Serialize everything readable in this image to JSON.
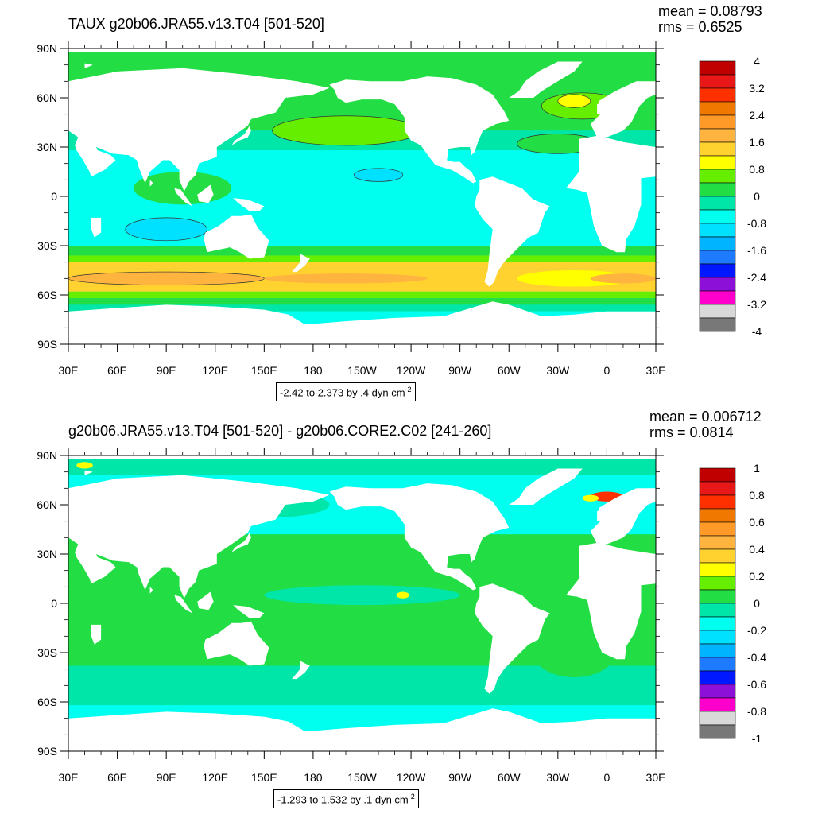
{
  "panels": [
    {
      "title": "TAUX g20b06.JRA55.v13.T04 [501-520]",
      "mean": "mean = 0.08793",
      "rms": "rms = 0.6525",
      "range_text": "-2.42 to 2.373 by .4 dyn cm",
      "range_sup": "-2",
      "colorbar_labels": [
        "4",
        "3.2",
        "2.4",
        "1.6",
        "0.8",
        "0",
        "-0.8",
        "-1.6",
        "-2.4",
        "-3.2",
        "-4"
      ]
    },
    {
      "title": "g20b06.JRA55.v13.T04 [501-520] - g20b06.CORE2.C02 [241-260]",
      "mean": "mean = 0.006712",
      "rms": "rms = 0.0814",
      "range_text": "-1.293 to 1.532 by .1 dyn cm",
      "range_sup": "-2",
      "colorbar_labels": [
        "1",
        "0.8",
        "0.6",
        "0.4",
        "0.2",
        "0",
        "-0.2",
        "-0.4",
        "-0.6",
        "-0.8",
        "-1"
      ]
    }
  ],
  "lat_labels": [
    "90N",
    "60N",
    "30N",
    "0",
    "30S",
    "60S",
    "90S"
  ],
  "lon_labels": [
    "30E",
    "60E",
    "90E",
    "120E",
    "150E",
    "180",
    "150W",
    "120W",
    "90W",
    "60W",
    "30W",
    "0",
    "30E"
  ],
  "colorbar_colors": [
    "#c00000",
    "#e81818",
    "#ff3000",
    "#f07800",
    "#ff9a28",
    "#ffb440",
    "#ffd230",
    "#ffff00",
    "#66ee00",
    "#22dd44",
    "#00e6a8",
    "#00ffee",
    "#00e0ff",
    "#00b4ff",
    "#1e7aff",
    "#0018ff",
    "#8c10d8",
    "#ff00cc",
    "#d8d8d8",
    "#787878"
  ]
}
